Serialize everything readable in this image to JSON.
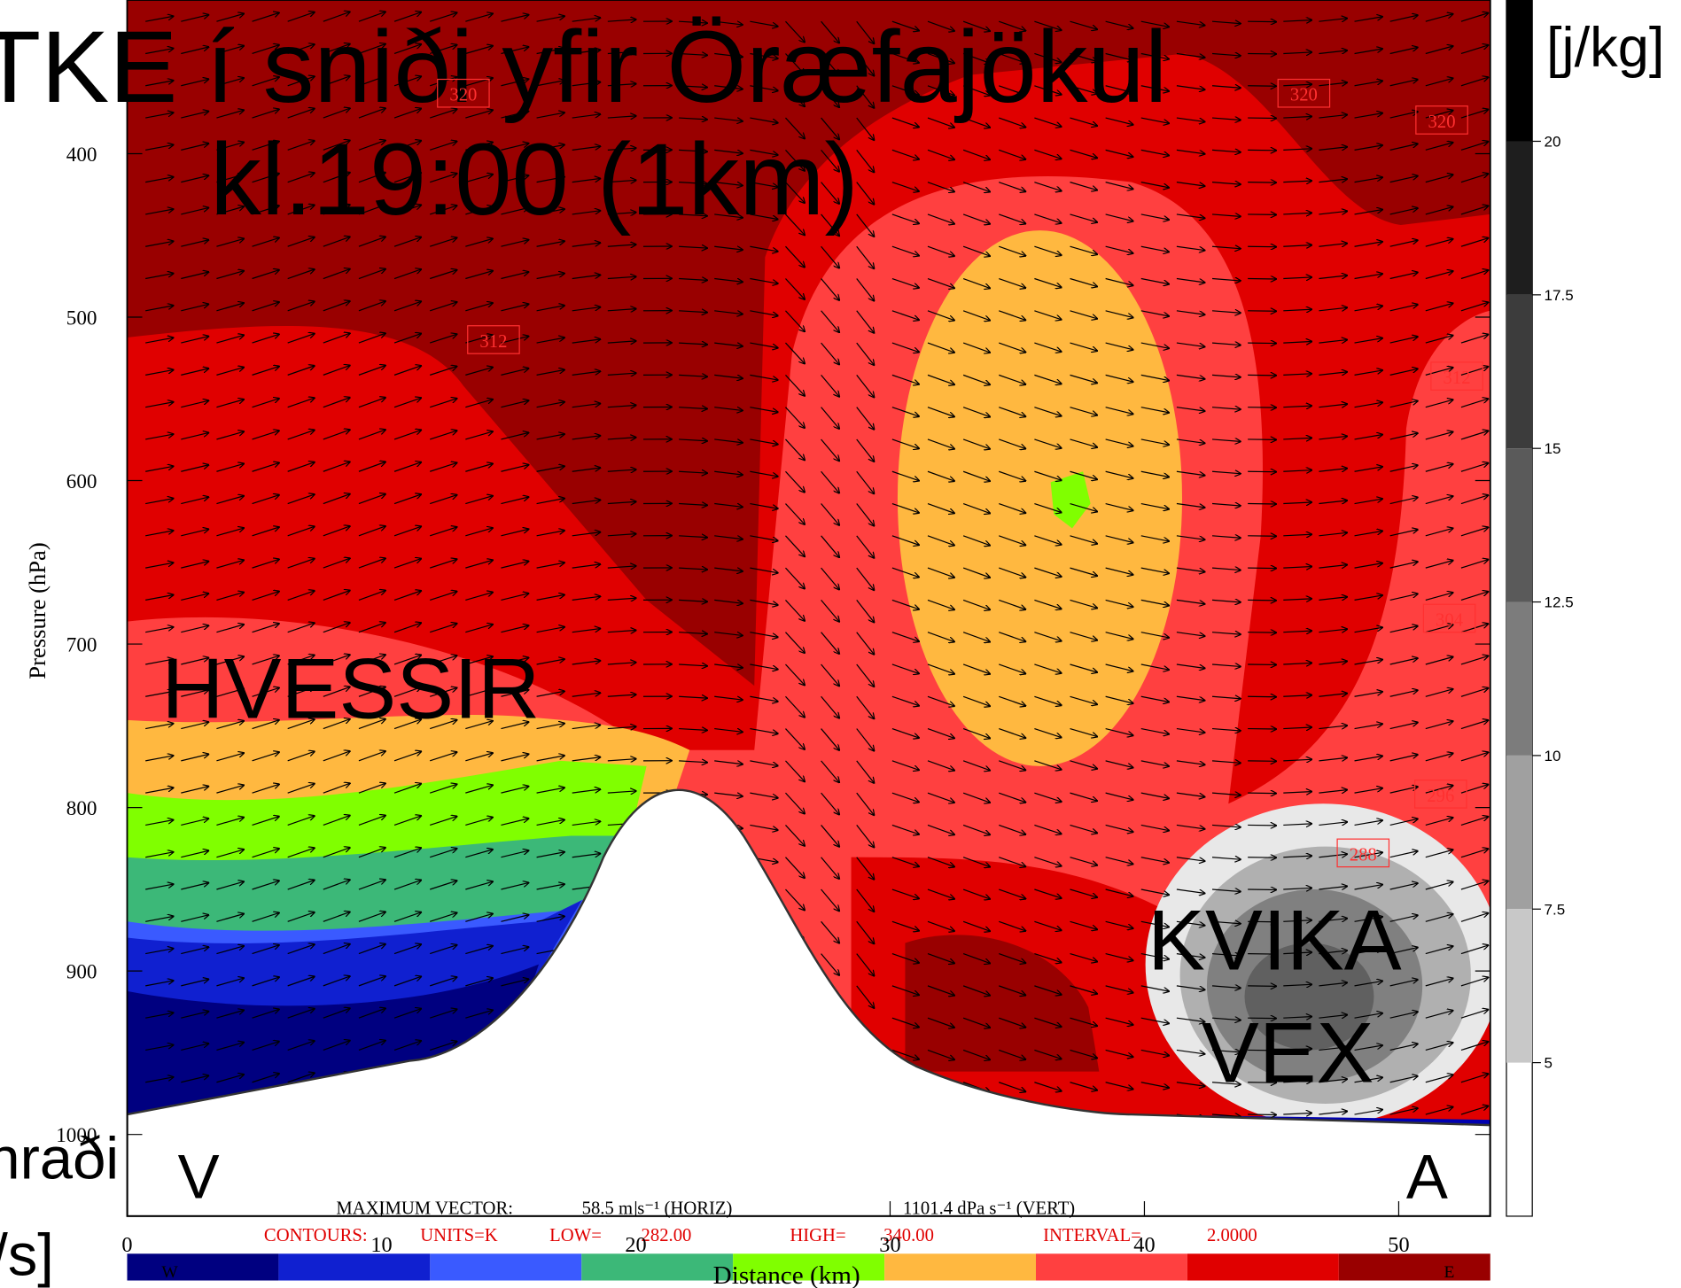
{
  "chart_data": {
    "type": "cross-section",
    "title": "TKE í sniði yfir Öræfajökul",
    "subtitle": "kl.19:00 (1km)",
    "ylabel": "Pressure (hPa)",
    "xlabel": "Distance (km)",
    "ylim": [
      1050,
      306
    ],
    "yticks": [
      400,
      500,
      600,
      700,
      800,
      900,
      1000
    ],
    "xlim": [
      0,
      53.6
    ],
    "xticks": [
      0,
      10,
      20,
      30,
      40,
      50
    ],
    "colorbar": {
      "label": "[j/kg]",
      "lim": [
        2.5,
        22.3
      ],
      "ticks": [
        20,
        17.5,
        15,
        12.5,
        10,
        7.5,
        5
      ]
    },
    "contour_labels": [
      320,
      320,
      320,
      312,
      312,
      304,
      296,
      288
    ],
    "annotations": [
      "HVESSIR",
      "KVIKA",
      "VEX",
      "V",
      "A",
      "hraði",
      "/s]"
    ],
    "vector_info": [
      "MAXIMUM VECTOR:",
      "58.5 m s⁻¹ (HORIZ)",
      "1101.4 dPa s⁻¹ (VERT)"
    ],
    "contour_info": [
      "CONTOURS:",
      "UNITS=K",
      "LOW=",
      "282.00",
      "HIGH=",
      "340.00",
      "INTERVAL=",
      "2.0000"
    ],
    "wind_bar_labels": [
      "W",
      "E"
    ]
  }
}
